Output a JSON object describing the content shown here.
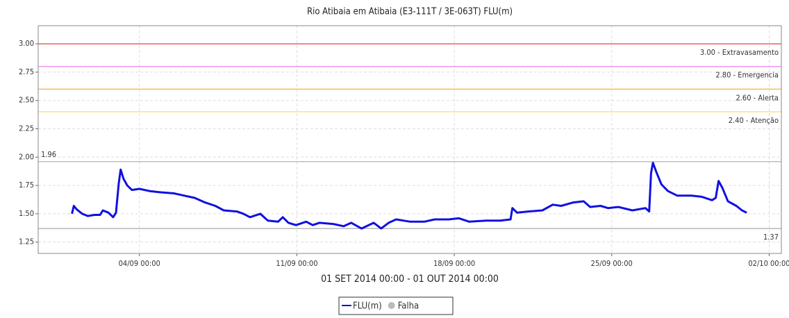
{
  "chart_data": {
    "type": "line",
    "title": "Rio Atibaia em Atibaia (E3-111T / 3E-063T) FLU(m)",
    "x_label": "01 SET 2014 00:00 - 01 OUT 2014 00:00",
    "xlim": [
      "30/08 12:00",
      "02/10 13:00"
    ],
    "xticks": [
      "04/09 00:00",
      "11/09 00:00",
      "18/09 00:00",
      "25/09 00:00",
      "02/10 00:00"
    ],
    "ylim": [
      1.15,
      3.16
    ],
    "yticks": [
      {
        "value": 1.25,
        "label": "1.25"
      },
      {
        "value": 1.5,
        "label": "1.50"
      },
      {
        "value": 1.75,
        "label": "1.75"
      },
      {
        "value": 2,
        "label": "2.00"
      },
      {
        "value": 2.25,
        "label": "2.25"
      },
      {
        "value": 2.5,
        "label": "2.50"
      },
      {
        "value": 2.75,
        "label": "2.75"
      },
      {
        "value": 3,
        "label": "3.00"
      }
    ],
    "grid": true,
    "thresholds": [
      {
        "value": 3,
        "label": "3.00 - Extravasamento",
        "color": "#e8413d"
      },
      {
        "value": 2.8,
        "label": "2.80 - Emergencia",
        "color": "#ee82ee"
      },
      {
        "value": 2.6,
        "label": "2.60 - Alerta",
        "color": "#f5b041"
      },
      {
        "value": 2.4,
        "label": "2.40 - Atenção",
        "color": "#f7dc6f"
      }
    ],
    "reference_lines": [
      {
        "value": 1.96,
        "position": "left",
        "color": "#aaaaaa"
      },
      {
        "value": 1.37,
        "position": "right",
        "color": "#aaaaaa"
      }
    ],
    "series": [
      {
        "name": "FLU(m)",
        "color": "#1010e0",
        "x": [
          "01/09 00:00",
          "01/09 02:00",
          "01/09 05:00",
          "01/09 11:00",
          "01/09 17:00",
          "02/09 00:00",
          "02/09 06:00",
          "02/09 09:00",
          "02/09 15:00",
          "02/09 20:00",
          "02/09 23:00",
          "03/09 02:00",
          "03/09 04:00",
          "03/09 07:00",
          "03/09 11:00",
          "03/09 16:00",
          "04/09 00:00",
          "04/09 11:00",
          "04/09 22:00",
          "05/09 13:00",
          "06/09 00:00",
          "06/09 11:00",
          "06/09 22:00",
          "07/09 09:00",
          "07/09 18:00",
          "08/09 08:00",
          "08/09 15:00",
          "08/09 22:00",
          "09/09 09:00",
          "09/09 17:00",
          "10/09 04:00",
          "10/09 09:00",
          "10/09 15:00",
          "10/09 23:00",
          "11/09 10:00",
          "11/09 17:00",
          "12/09 00:00",
          "12/09 15:00",
          "13/09 02:00",
          "13/09 10:00",
          "13/09 21:00",
          "14/09 10:00",
          "14/09 18:00",
          "15/09 02:00",
          "15/09 10:00",
          "16/09 01:00",
          "16/09 16:00",
          "17/09 03:00",
          "17/09 18:00",
          "18/09 05:00",
          "18/09 16:00",
          "19/09 10:00",
          "20/09 01:00",
          "20/09 12:00",
          "20/09 14:00",
          "20/09 19:00",
          "21/09 07:00",
          "21/09 22:00",
          "22/09 09:00",
          "22/09 18:00",
          "23/09 07:00",
          "23/09 18:00",
          "24/09 01:00",
          "24/09 12:00",
          "24/09 20:00",
          "25/09 07:00",
          "25/09 22:00",
          "26/09 12:00",
          "26/09 16:00",
          "26/09 18:00",
          "26/09 20:00",
          "27/09 00:00",
          "27/09 05:00",
          "27/09 12:00",
          "27/09 22:00",
          "28/09 13:00",
          "29/09 00:00",
          "29/09 11:00",
          "29/09 15:00",
          "29/09 18:00",
          "29/09 22:00",
          "30/09 04:00",
          "30/09 13:00",
          "30/09 19:00",
          "01/10 00:00"
        ],
        "values": [
          1.5,
          1.57,
          1.54,
          1.5,
          1.48,
          1.49,
          1.49,
          1.53,
          1.51,
          1.47,
          1.51,
          1.77,
          1.89,
          1.81,
          1.75,
          1.71,
          1.72,
          1.7,
          1.69,
          1.68,
          1.66,
          1.64,
          1.6,
          1.57,
          1.53,
          1.52,
          1.5,
          1.47,
          1.5,
          1.44,
          1.43,
          1.47,
          1.42,
          1.4,
          1.43,
          1.4,
          1.42,
          1.41,
          1.39,
          1.42,
          1.37,
          1.42,
          1.37,
          1.42,
          1.45,
          1.43,
          1.43,
          1.45,
          1.45,
          1.46,
          1.43,
          1.44,
          1.44,
          1.45,
          1.55,
          1.51,
          1.52,
          1.53,
          1.58,
          1.57,
          1.6,
          1.61,
          1.56,
          1.57,
          1.55,
          1.56,
          1.53,
          1.55,
          1.52,
          1.86,
          1.95,
          1.86,
          1.76,
          1.7,
          1.66,
          1.66,
          1.65,
          1.62,
          1.64,
          1.79,
          1.73,
          1.61,
          1.57,
          1.53,
          1.51
        ]
      }
    ],
    "missing_marker": {
      "name": "Falha",
      "color": "#bbbbbb"
    }
  }
}
